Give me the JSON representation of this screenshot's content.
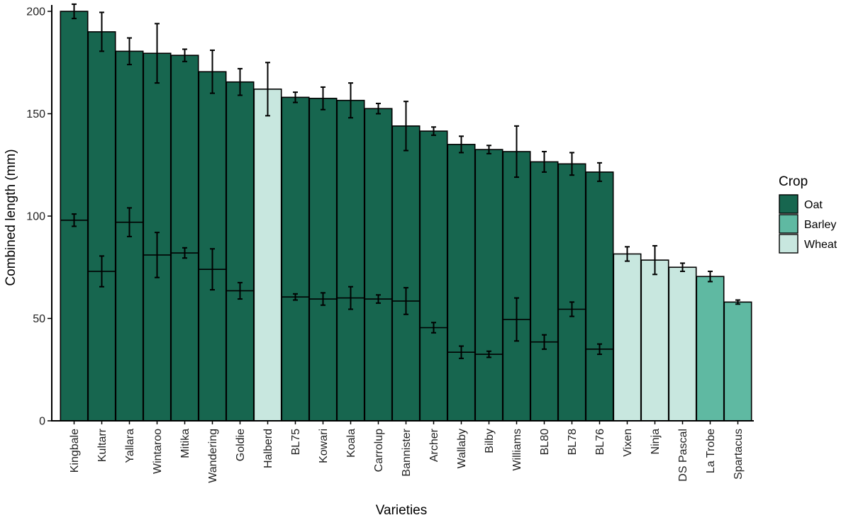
{
  "chart_data": {
    "type": "bar",
    "title": "",
    "xlabel": "Varieties",
    "ylabel": "Combined length (mm)",
    "ylim": [
      0,
      200
    ],
    "yticks": [
      0,
      50,
      100,
      150,
      200
    ],
    "grid": false,
    "legend": {
      "title": "Crop",
      "placement": "right",
      "entries": [
        {
          "name": "Oat",
          "color": "#17664f"
        },
        {
          "name": "Barley",
          "color": "#5fb9a2"
        },
        {
          "name": "Wheat",
          "color": "#c8e7df"
        }
      ]
    },
    "categories": [
      "Kingbale",
      "Kultarr",
      "Yallara",
      "Wintaroo",
      "Mitika",
      "Wandering",
      "Goldie",
      "Halberd",
      "BL75",
      "Kowari",
      "Koala",
      "Carrolup",
      "Bannister",
      "Archer",
      "Wallaby",
      "Bilby",
      "Williams",
      "BL80",
      "BL78",
      "BL76",
      "Vixen",
      "Ninja",
      "DS Pascal",
      "La Trobe",
      "Spartacus"
    ],
    "crop": [
      "Oat",
      "Oat",
      "Oat",
      "Oat",
      "Oat",
      "Oat",
      "Oat",
      "Wheat",
      "Oat",
      "Oat",
      "Oat",
      "Oat",
      "Oat",
      "Oat",
      "Oat",
      "Oat",
      "Oat",
      "Oat",
      "Oat",
      "Oat",
      "Wheat",
      "Wheat",
      "Wheat",
      "Barley",
      "Barley"
    ],
    "values": [
      200,
      190,
      180.5,
      179.5,
      178.5,
      170.5,
      165.5,
      162,
      158,
      157.5,
      156.5,
      152.5,
      144,
      141.5,
      135,
      132.5,
      131.5,
      126.5,
      125.5,
      121.5,
      81.5,
      78.5,
      75,
      70.5,
      58
    ],
    "error": [
      3.5,
      9.5,
      6.5,
      14.5,
      3,
      10.5,
      6.5,
      13,
      2.5,
      5.5,
      8.5,
      2.5,
      12,
      2,
      4,
      2,
      12.5,
      5,
      5.5,
      4.5,
      3.5,
      7,
      2,
      2.5,
      1
    ],
    "segment": {
      "values": [
        98,
        73,
        97,
        81,
        82,
        74,
        63.5,
        null,
        60.5,
        59.5,
        60,
        59.5,
        58.5,
        45.5,
        33.5,
        32.5,
        49.5,
        38.5,
        54.5,
        35,
        null,
        null,
        null,
        null,
        null
      ],
      "error": [
        3,
        7.5,
        7,
        11,
        2.5,
        10,
        4,
        null,
        1.5,
        3,
        5.5,
        2,
        6.5,
        2.5,
        3,
        1.5,
        10.5,
        3.5,
        3.5,
        2.5,
        null,
        null,
        null,
        null,
        null
      ]
    }
  }
}
